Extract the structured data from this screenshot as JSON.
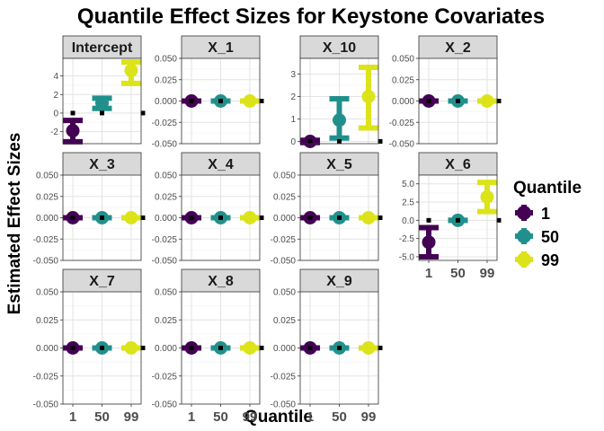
{
  "chart_data": {
    "type": "scatter",
    "title": "Quantile Effect Sizes for Keystone Covariates",
    "xlabel": "Quantile",
    "ylabel": "Estimated Effect Sizes",
    "legend": {
      "title": "Quantile",
      "position": "right",
      "entries": [
        {
          "label": "1",
          "color": "#440154"
        },
        {
          "label": "50",
          "color": "#21908C"
        },
        {
          "label": "99",
          "color": "#DCE319"
        }
      ]
    },
    "categories": [
      "1",
      "50",
      "99"
    ],
    "grid": true,
    "panels": [
      {
        "name": "Intercept",
        "ylim": [
          -3.3,
          5.9
        ],
        "yticks": [
          -2,
          0,
          2,
          4
        ],
        "ytick_labels": [
          "-2",
          "0",
          "2",
          "4"
        ],
        "estimates": [
          -1.9,
          1.1,
          4.6
        ],
        "lower": [
          -3.1,
          0.5,
          3.2
        ],
        "upper": [
          -0.8,
          1.6,
          5.5
        ],
        "reference": [
          0,
          0,
          0
        ]
      },
      {
        "name": "X_1",
        "ylim": [
          -0.05,
          0.05
        ],
        "yticks": [
          -0.05,
          -0.025,
          0,
          0.025,
          0.05
        ],
        "ytick_labels": [
          "-0.050",
          "-0.025",
          "0.000",
          "0.025",
          "0.050"
        ],
        "estimates": [
          0,
          0,
          0
        ],
        "lower": [
          0,
          0,
          0
        ],
        "upper": [
          0,
          0,
          0
        ],
        "reference": [
          0,
          0,
          0
        ]
      },
      {
        "name": "X_10",
        "ylim": [
          -0.1,
          3.7
        ],
        "yticks": [
          0,
          1,
          2,
          3
        ],
        "ytick_labels": [
          "0",
          "1",
          "2",
          "3"
        ],
        "estimates": [
          0,
          0.95,
          2.0
        ],
        "lower": [
          -0.05,
          0.15,
          0.6
        ],
        "upper": [
          0.05,
          1.9,
          3.3
        ],
        "reference": [
          0,
          0,
          0
        ]
      },
      {
        "name": "X_2",
        "ylim": [
          -0.05,
          0.05
        ],
        "yticks": [
          -0.05,
          -0.025,
          0,
          0.025,
          0.05
        ],
        "ytick_labels": [
          "-0.050",
          "-0.025",
          "0.000",
          "0.025",
          "0.050"
        ],
        "estimates": [
          0,
          0,
          0
        ],
        "lower": [
          0,
          0,
          0
        ],
        "upper": [
          0,
          0,
          0
        ],
        "reference": [
          0,
          0,
          0
        ]
      },
      {
        "name": "X_3",
        "ylim": [
          -0.05,
          0.05
        ],
        "yticks": [
          -0.05,
          -0.025,
          0,
          0.025,
          0.05
        ],
        "ytick_labels": [
          "-0.050",
          "-0.025",
          "0.000",
          "0.025",
          "0.050"
        ],
        "estimates": [
          0,
          0,
          0
        ],
        "lower": [
          0,
          0,
          0
        ],
        "upper": [
          0,
          0,
          0
        ],
        "reference": [
          0,
          0,
          0
        ]
      },
      {
        "name": "X_4",
        "ylim": [
          -0.05,
          0.05
        ],
        "yticks": [
          -0.05,
          -0.025,
          0,
          0.025,
          0.05
        ],
        "ytick_labels": [
          "-0.050",
          "-0.025",
          "0.000",
          "0.025",
          "0.050"
        ],
        "estimates": [
          0,
          0,
          0
        ],
        "lower": [
          0,
          0,
          0
        ],
        "upper": [
          0,
          0,
          0
        ],
        "reference": [
          0,
          0,
          0
        ]
      },
      {
        "name": "X_5",
        "ylim": [
          -0.05,
          0.05
        ],
        "yticks": [
          -0.05,
          -0.025,
          0,
          0.025,
          0.05
        ],
        "ytick_labels": [
          "-0.050",
          "-0.025",
          "0.000",
          "0.025",
          "0.050"
        ],
        "estimates": [
          0,
          0,
          0
        ],
        "lower": [
          0,
          0,
          0
        ],
        "upper": [
          0,
          0,
          0
        ],
        "reference": [
          0,
          0,
          0
        ]
      },
      {
        "name": "X_6",
        "ylim": [
          -5.5,
          6.2
        ],
        "yticks": [
          -5,
          -2.5,
          0,
          2.5,
          5
        ],
        "ytick_labels": [
          "-5.0",
          "-2.5",
          "0.0",
          "2.5",
          "5.0"
        ],
        "estimates": [
          -3.0,
          0,
          3.2
        ],
        "lower": [
          -5.0,
          0,
          1.2
        ],
        "upper": [
          -1.0,
          0,
          5.2
        ],
        "reference": [
          0,
          0,
          0
        ]
      },
      {
        "name": "X_7",
        "ylim": [
          -0.05,
          0.05
        ],
        "yticks": [
          -0.05,
          -0.025,
          0,
          0.025,
          0.05
        ],
        "ytick_labels": [
          "-0.050",
          "-0.025",
          "0.000",
          "0.025",
          "0.050"
        ],
        "estimates": [
          0,
          0,
          0
        ],
        "lower": [
          0,
          0,
          0
        ],
        "upper": [
          0,
          0,
          0
        ],
        "reference": [
          0,
          0,
          0
        ]
      },
      {
        "name": "X_8",
        "ylim": [
          -0.05,
          0.05
        ],
        "yticks": [
          -0.05,
          -0.025,
          0,
          0.025,
          0.05
        ],
        "ytick_labels": [
          "-0.050",
          "-0.025",
          "0.000",
          "0.025",
          "0.050"
        ],
        "estimates": [
          0,
          0,
          0
        ],
        "lower": [
          0,
          0,
          0
        ],
        "upper": [
          0,
          0,
          0
        ],
        "reference": [
          0,
          0,
          0
        ]
      },
      {
        "name": "X_9",
        "ylim": [
          -0.05,
          0.05
        ],
        "yticks": [
          -0.05,
          -0.025,
          0,
          0.025,
          0.05
        ],
        "ytick_labels": [
          "-0.050",
          "-0.025",
          "0.000",
          "0.025",
          "0.050"
        ],
        "estimates": [
          0,
          0,
          0
        ],
        "lower": [
          0,
          0,
          0
        ],
        "upper": [
          0,
          0,
          0
        ],
        "reference": [
          0,
          0,
          0
        ]
      }
    ]
  }
}
